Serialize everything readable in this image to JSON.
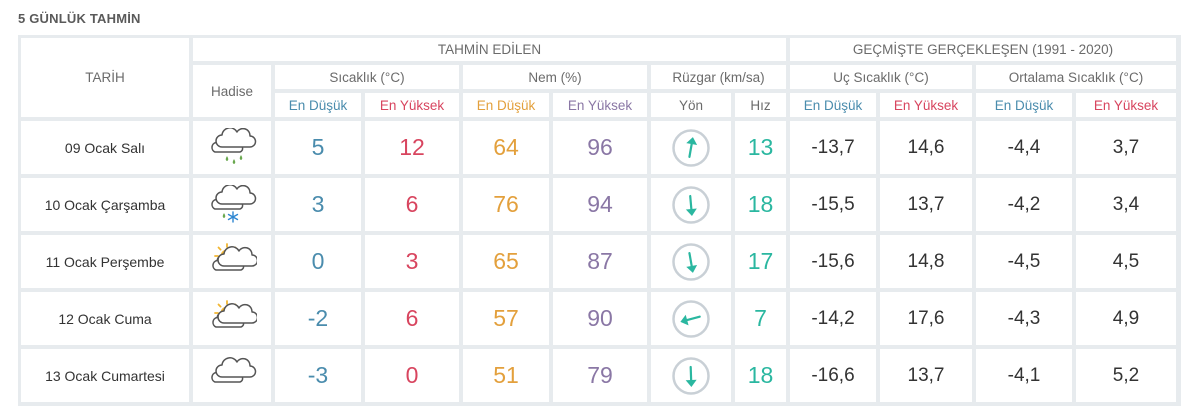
{
  "title": "5 GÜNLÜK TAHMİN",
  "headers": {
    "date": "TARİH",
    "forecast_group": "TAHMİN EDİLEN",
    "history_group": "GEÇMİŞTE GERÇEKLEŞEN (1991 - 2020)",
    "event": "Hadise",
    "temperature": "Sıcaklık (°C)",
    "humidity": "Nem (%)",
    "wind": "Rüzgar (km/sa)",
    "extreme_temp": "Uç Sıcaklık (°C)",
    "avg_temp": "Ortalama Sıcaklık (°C)",
    "low": "En Düşük",
    "high": "En Yüksek",
    "direction": "Yön",
    "speed": "Hız"
  },
  "colors": {
    "low": "#4a8cad",
    "high": "#d8455f",
    "humidity_low": "#e3a03c",
    "humidity_high": "#8a77a5",
    "wind": "#2ab7a0",
    "rain": "#6aa84f",
    "snow": "#2e86d1",
    "sun": "#f2b632"
  },
  "rows": [
    {
      "date": "09 Ocak Salı",
      "icon": "cloud-rain-icon",
      "temp_low": "5",
      "temp_high": "12",
      "hum_low": "64",
      "hum_high": "96",
      "wind_dir": "north-arrow-icon",
      "wind_angle": 10,
      "wind_speed": "13",
      "ext_low": "-13,7",
      "ext_high": "14,6",
      "avg_low": "-4,4",
      "avg_high": "3,7"
    },
    {
      "date": "10 Ocak Çarşamba",
      "icon": "cloud-rain-snow-icon",
      "temp_low": "3",
      "temp_high": "6",
      "hum_low": "76",
      "hum_high": "94",
      "wind_dir": "south-arrow-icon",
      "wind_angle": 175,
      "wind_speed": "18",
      "ext_low": "-15,5",
      "ext_high": "13,7",
      "avg_low": "-4,2",
      "avg_high": "3,4"
    },
    {
      "date": "11 Ocak Perşembe",
      "icon": "partly-cloudy-icon",
      "temp_low": "0",
      "temp_high": "3",
      "hum_low": "65",
      "hum_high": "87",
      "wind_dir": "south-arrow-icon",
      "wind_angle": 170,
      "wind_speed": "17",
      "ext_low": "-15,6",
      "ext_high": "14,8",
      "avg_low": "-4,5",
      "avg_high": "4,5"
    },
    {
      "date": "12 Ocak Cuma",
      "icon": "partly-cloudy-icon",
      "temp_low": "-2",
      "temp_high": "6",
      "hum_low": "57",
      "hum_high": "90",
      "wind_dir": "west-arrow-icon",
      "wind_angle": 255,
      "wind_speed": "7",
      "ext_low": "-14,2",
      "ext_high": "17,6",
      "avg_low": "-4,3",
      "avg_high": "4,9"
    },
    {
      "date": "13 Ocak Cumartesi",
      "icon": "cloudy-icon",
      "temp_low": "-3",
      "temp_high": "0",
      "hum_low": "51",
      "hum_high": "79",
      "wind_dir": "south-arrow-icon",
      "wind_angle": 178,
      "wind_speed": "18",
      "ext_low": "-16,6",
      "ext_high": "13,7",
      "avg_low": "-4,1",
      "avg_high": "5,2"
    }
  ]
}
